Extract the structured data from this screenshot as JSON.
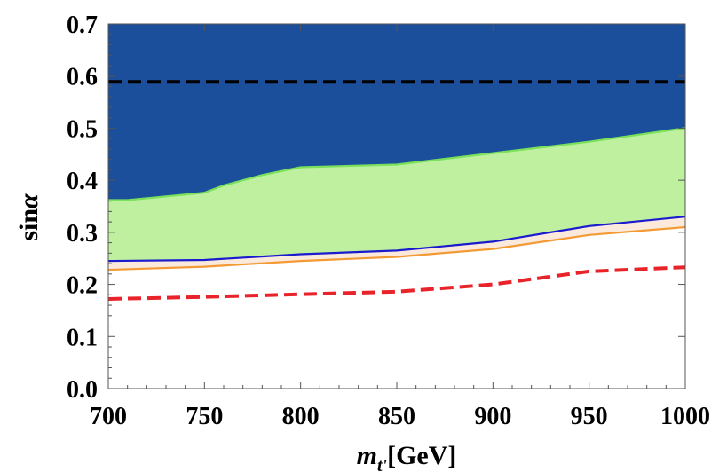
{
  "chart_data": {
    "type": "area",
    "title": "",
    "xlabel": "m_{t'}[GeV]",
    "xlabel_parts": {
      "symbol": "m",
      "subscript": "t'",
      "unit": "[GeV]"
    },
    "ylabel": "sinα",
    "ylabel_parts": {
      "fn": "sin",
      "symbol": "α"
    },
    "xlim": [
      700,
      1000
    ],
    "ylim": [
      0.0,
      0.7
    ],
    "xticks": [
      700,
      750,
      800,
      850,
      900,
      950,
      1000
    ],
    "xtick_labels": [
      "700",
      "750",
      "800",
      "850",
      "900",
      "950",
      "1000"
    ],
    "yticks": [
      0.0,
      0.1,
      0.2,
      0.3,
      0.4,
      0.5,
      0.6,
      0.7
    ],
    "ytick_labels": [
      "0.0",
      "0.1",
      "0.2",
      "0.3",
      "0.4",
      "0.5",
      "0.6",
      "0.7"
    ],
    "grid": false,
    "legend": "none",
    "series": [
      {
        "x": [
          700,
          710,
          750,
          760,
          780,
          800,
          850,
          900,
          950,
          1000
        ],
        "y": [
          0.362,
          0.362,
          0.376,
          0.39,
          0.41,
          0.425,
          0.43,
          0.452,
          0.474,
          0.5
        ],
        "color": "#7be15a",
        "fill_above": "#1b4f9c"
      },
      {
        "x": [
          700,
          750,
          800,
          850,
          900,
          950,
          1000
        ],
        "y": [
          0.245,
          0.247,
          0.258,
          0.265,
          0.282,
          0.312,
          0.33
        ],
        "color": "#1a1acf",
        "fill_above": "#bff0a0"
      },
      {
        "x": [
          700,
          750,
          800,
          850,
          900,
          950,
          1000
        ],
        "y": [
          0.228,
          0.234,
          0.245,
          0.253,
          0.268,
          0.295,
          0.31
        ],
        "color": "#f39a35",
        "fill_above": "#fbe9dc"
      },
      {
        "x": [
          700,
          750,
          800,
          850,
          900,
          950,
          1000
        ],
        "y": [
          0.172,
          0.176,
          0.181,
          0.186,
          0.2,
          0.225,
          0.233
        ],
        "color": "#e8232a",
        "style": "dashed"
      },
      {
        "x": [
          700,
          1000
        ],
        "y": [
          0.589,
          0.589
        ],
        "color": "#000000",
        "style": "dashed"
      }
    ]
  }
}
